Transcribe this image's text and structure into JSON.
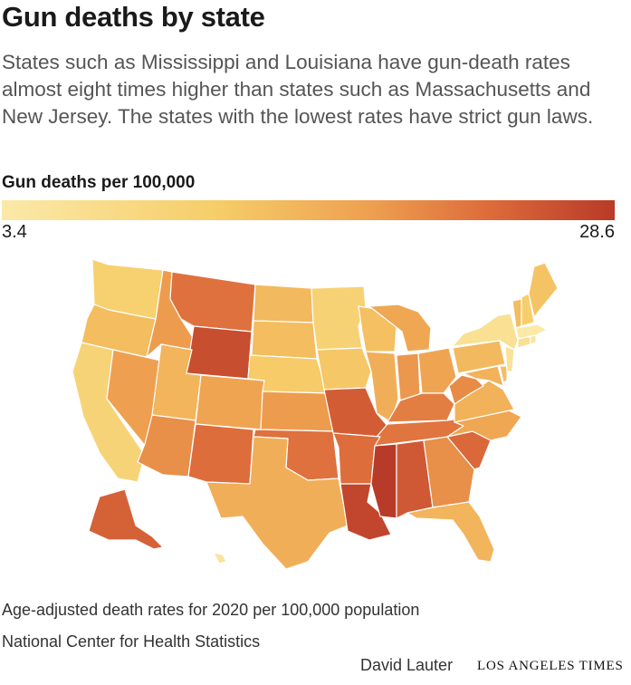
{
  "header": {
    "title": "Gun deaths by state",
    "subtitle": "States such as Mississippi and Louisiana have gun-death rates almost eight times higher than states such as Massachusetts and New Jersey. The states with the lowest rates have strict gun laws."
  },
  "legend": {
    "title": "Gun deaths per 100,000",
    "min_label": "3.4",
    "max_label": "28.6",
    "min_value": 3.4,
    "max_value": 28.6,
    "colors": [
      "#fbe9a8",
      "#f6cd69",
      "#eea050",
      "#dc6a3a",
      "#b83a28"
    ]
  },
  "map_data": {
    "type": "choropleth",
    "region": "United States",
    "metric": "Gun deaths per 100,000",
    "rates_estimated": {
      "WA": 9.0,
      "OR": 12.0,
      "CA": 8.3,
      "NV": 16.0,
      "ID": 16.5,
      "MT": 21.5,
      "WY": 26.0,
      "UT": 13.0,
      "AZ": 18.0,
      "CO": 15.5,
      "NM": 22.0,
      "TX": 14.0,
      "ND": 12.5,
      "SD": 12.0,
      "NE": 10.0,
      "KS": 16.5,
      "OK": 21.5,
      "MN": 8.5,
      "IA": 10.5,
      "MO": 24.0,
      "AR": 22.0,
      "LA": 27.0,
      "WI": 11.5,
      "IL": 14.0,
      "MI": 15.0,
      "IN": 17.0,
      "OH": 15.5,
      "KY": 20.0,
      "TN": 21.0,
      "MS": 28.6,
      "AL": 24.5,
      "GA": 18.0,
      "FL": 13.0,
      "SC": 22.5,
      "NC": 15.0,
      "VA": 13.5,
      "WV": 18.5,
      "PA": 12.5,
      "NY": 5.5,
      "VT": 12.0,
      "NH": 9.5,
      "ME": 11.0,
      "MA": 3.4,
      "RI": 4.5,
      "CT": 5.5,
      "NJ": 5.0,
      "DE": 12.0,
      "MD": 13.5,
      "AK": 23.5,
      "HI": 4.5
    }
  },
  "footer": {
    "note": "Age-adjusted death rates for 2020 per 100,000 population",
    "source": "National Center for Health Statistics",
    "byline": "David Lauter",
    "publisher": "LOS ANGELES TIMES"
  }
}
